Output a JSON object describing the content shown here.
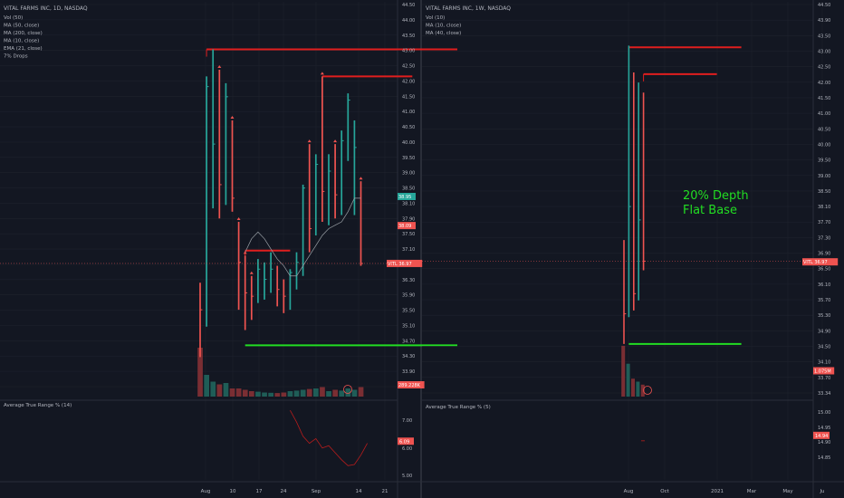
{
  "colors": {
    "background": "#131722",
    "grid": "#1e222d",
    "divider": "#2a2e39",
    "up": "#26a69a",
    "down": "#ef5350",
    "resistance": "#e01e1e",
    "support": "#22dd22",
    "annotation": "#22dd22",
    "text": "#b2b5be"
  },
  "chart_data": [
    {
      "type": "bar",
      "panel": "daily",
      "title": "VITAL FARMS INC, 1D, NASDAQ",
      "legend": [
        "Vol (50)",
        "MA (50, close)",
        "MA (200, close)",
        "MA (10, close)",
        "EMA (21, close)",
        "7% Drops"
      ],
      "price_axis_ticks": [
        "44.50",
        "44.00",
        "43.50",
        "43.00",
        "42.50",
        "42.00",
        "41.50",
        "41.00",
        "40.50",
        "40.00",
        "39.50",
        "39.00",
        "38.50",
        "38.10",
        "37.90",
        "37.50",
        "37.10",
        "36.70",
        "36.30",
        "35.90",
        "35.50",
        "35.10",
        "34.70",
        "34.30",
        "33.90",
        "33.50"
      ],
      "ylim": [
        33.3,
        44.6
      ],
      "date_ticks": [
        "Aug",
        "10",
        "17",
        "24",
        "Sep",
        "14",
        "21"
      ],
      "price_badges": [
        {
          "label": "38.95",
          "value": 38.95,
          "color": "#26a69a"
        },
        {
          "label": "38.09",
          "value": 38.09,
          "color": "#ef5350"
        },
        {
          "label": "VITL  36.97",
          "value": 36.97,
          "color": "#ef5350"
        },
        {
          "label": "289.228K",
          "value": 33.38,
          "color": "#ef5350"
        }
      ],
      "bars": [
        {
          "h": 36.4,
          "l": 34.2,
          "c": 35.6,
          "up": false,
          "vol": 1.8
        },
        {
          "h": 42.5,
          "l": 35.1,
          "c": 42.2,
          "up": true,
          "vol": 0.8
        },
        {
          "h": 43.3,
          "l": 38.6,
          "c": 40.5,
          "up": true,
          "vol": 0.55
        },
        {
          "h": 42.7,
          "l": 38.3,
          "c": 39.3,
          "up": false,
          "vol": 0.45
        },
        {
          "h": 42.3,
          "l": 38.7,
          "c": 41.9,
          "up": true,
          "vol": 0.5
        },
        {
          "h": 41.2,
          "l": 38.5,
          "c": 38.9,
          "up": false,
          "vol": 0.3
        },
        {
          "h": 38.2,
          "l": 35.6,
          "c": 37.0,
          "up": false,
          "vol": 0.3
        },
        {
          "h": 37.2,
          "l": 35.0,
          "c": 36.1,
          "up": false,
          "vol": 0.25
        },
        {
          "h": 36.6,
          "l": 35.3,
          "c": 36.0,
          "up": false,
          "vol": 0.2
        },
        {
          "h": 37.1,
          "l": 35.8,
          "c": 36.8,
          "up": true,
          "vol": 0.18
        },
        {
          "h": 37.0,
          "l": 35.9,
          "c": 36.5,
          "up": true,
          "vol": 0.15
        },
        {
          "h": 37.3,
          "l": 36.1,
          "c": 36.8,
          "up": true,
          "vol": 0.14
        },
        {
          "h": 36.9,
          "l": 35.7,
          "c": 36.2,
          "up": false,
          "vol": 0.13
        },
        {
          "h": 36.5,
          "l": 35.5,
          "c": 36.0,
          "up": false,
          "vol": 0.15
        },
        {
          "h": 36.8,
          "l": 35.6,
          "c": 36.7,
          "up": true,
          "vol": 0.2
        },
        {
          "h": 37.3,
          "l": 36.2,
          "c": 37.0,
          "up": true,
          "vol": 0.22
        },
        {
          "h": 39.3,
          "l": 36.6,
          "c": 39.2,
          "up": true,
          "vol": 0.25
        },
        {
          "h": 40.5,
          "l": 37.3,
          "c": 38.0,
          "up": false,
          "vol": 0.28
        },
        {
          "h": 40.2,
          "l": 37.8,
          "c": 39.9,
          "up": true,
          "vol": 0.3
        },
        {
          "h": 42.5,
          "l": 38.2,
          "c": 39.1,
          "up": false,
          "vol": 0.35
        },
        {
          "h": 40.2,
          "l": 38.1,
          "c": 39.7,
          "up": true,
          "vol": 0.2
        },
        {
          "h": 40.5,
          "l": 38.3,
          "c": 39.0,
          "up": false,
          "vol": 0.25
        },
        {
          "h": 40.9,
          "l": 38.4,
          "c": 40.6,
          "up": true,
          "vol": 0.22
        },
        {
          "h": 42.0,
          "l": 40.0,
          "c": 41.8,
          "up": true,
          "vol": 0.3
        },
        {
          "h": 41.2,
          "l": 38.4,
          "c": 40.4,
          "up": true,
          "vol": 0.25
        },
        {
          "h": 39.4,
          "l": 36.9,
          "c": 36.97,
          "up": false,
          "vol": 0.35
        }
      ],
      "drop_markers": [
        3,
        5,
        6,
        7,
        8,
        17,
        19,
        21,
        25
      ],
      "ma_line": [
        null,
        null,
        null,
        null,
        null,
        null,
        null,
        37.3,
        37.7,
        37.9,
        37.7,
        37.4,
        37.1,
        36.9,
        36.6,
        36.6,
        36.9,
        37.2,
        37.5,
        37.8,
        38.0,
        38.1,
        38.2,
        38.5,
        38.9,
        38.9
      ],
      "resistance_lines": [
        {
          "from": 1,
          "to": 40,
          "value": 43.3
        },
        {
          "from": 19,
          "to": 33,
          "value": 42.5
        },
        {
          "from": 7,
          "to": 14,
          "value": 37.35
        }
      ],
      "support_line": {
        "from": 7,
        "to": 40,
        "value": 34.55
      },
      "atr": {
        "title": "Average True Range % (14)",
        "ticks": [
          "7.00",
          "6.00",
          "5.00"
        ],
        "ylim": [
          4.6,
          7.6
        ],
        "badge": {
          "label": "6.09",
          "value": 6.09
        },
        "values": [
          {
            "i": 14,
            "v": 7.4
          },
          {
            "i": 15,
            "v": 6.9
          },
          {
            "i": 16,
            "v": 6.3
          },
          {
            "i": 17,
            "v": 6.0
          },
          {
            "i": 18,
            "v": 6.2
          },
          {
            "i": 19,
            "v": 5.8
          },
          {
            "i": 20,
            "v": 5.9
          },
          {
            "i": 21,
            "v": 5.6
          },
          {
            "i": 22,
            "v": 5.3
          },
          {
            "i": 23,
            "v": 5.05
          },
          {
            "i": 24,
            "v": 5.1
          },
          {
            "i": 25,
            "v": 5.5
          },
          {
            "i": 26,
            "v": 6.0
          }
        ]
      }
    },
    {
      "type": "bar",
      "panel": "weekly",
      "title": "VITAL FARMS INC, 1W, NASDAQ",
      "legend": [
        "Vol (10)",
        "MA (10, close)",
        "MA (40, close)"
      ],
      "price_axis_ticks": [
        "44.50",
        "43.90",
        "43.50",
        "43.00",
        "42.50",
        "42.00",
        "41.50",
        "41.00",
        "40.50",
        "40.00",
        "39.50",
        "39.00",
        "38.50",
        "38.10",
        "37.70",
        "37.30",
        "36.90",
        "36.50",
        "36.10",
        "35.70",
        "35.30",
        "34.90",
        "34.50",
        "34.10",
        "33.70",
        "33.34"
      ],
      "ylim": [
        33.2,
        44.6
      ],
      "date_ticks": [
        "Aug",
        "Oct",
        "2021",
        "Mar",
        "May",
        "Ju"
      ],
      "price_badges": [
        {
          "label": "VITL  36.97",
          "value": 36.95,
          "color": "#ef5350"
        },
        {
          "label": "1.075M",
          "value": 33.7,
          "color": "#ef5350"
        }
      ],
      "bars": [
        {
          "h": 37.6,
          "l": 34.5,
          "c": 35.4,
          "up": false,
          "vol": 0.85
        },
        {
          "h": 43.4,
          "l": 35.3,
          "c": 38.6,
          "up": true,
          "vol": 0.55
        },
        {
          "h": 42.6,
          "l": 35.5,
          "c": 36.0,
          "up": false,
          "vol": 0.3
        },
        {
          "h": 42.3,
          "l": 35.8,
          "c": 38.2,
          "up": true,
          "vol": 0.25
        },
        {
          "h": 42.0,
          "l": 36.7,
          "c": 36.97,
          "up": false,
          "vol": 0.2
        }
      ],
      "resistance_lines": [
        {
          "from": 1,
          "to": 24,
          "value": 43.35
        },
        {
          "from": 4,
          "to": 19,
          "value": 42.55
        }
      ],
      "support_line": {
        "from": 1,
        "to": 24,
        "value": 34.5
      },
      "annotation": [
        "20% Depth",
        "Flat Base"
      ],
      "atr": {
        "title": "Average True Range % (5)",
        "ticks": [
          "15.00",
          "14.95",
          "14.90",
          "14.85"
        ],
        "ylim": [
          14.83,
          15.02
        ],
        "badge": {
          "label": "14.94",
          "value": 14.94
        },
        "values": []
      }
    }
  ]
}
